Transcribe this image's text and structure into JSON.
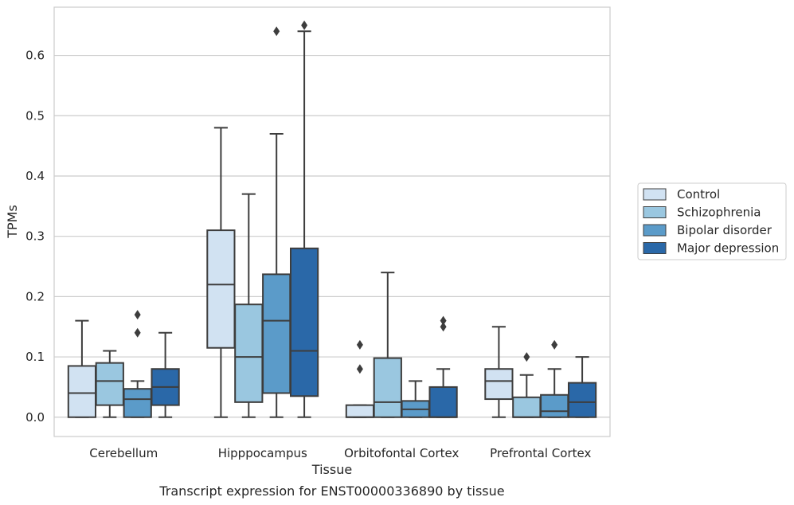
{
  "chart_data": {
    "type": "box",
    "caption": "Transcript expression for ENST00000336890 by tissue",
    "xlabel": "Tissue",
    "ylabel": "TPMs",
    "ylim": [
      -0.032,
      0.68
    ],
    "yticks": [
      0.0,
      0.1,
      0.2,
      0.3,
      0.4,
      0.5,
      0.6
    ],
    "ytick_labels": [
      "0.0",
      "0.1",
      "0.2",
      "0.3",
      "0.4",
      "0.5",
      "0.6"
    ],
    "grid": "horizontal",
    "legend_position": "right",
    "categories": [
      "Cerebellum",
      "Hipppocampus",
      "Orbitofontal Cortex",
      "Prefrontal Cortex"
    ],
    "series": [
      {
        "name": "Control",
        "color": "#d1e2f2",
        "boxes": [
          {
            "whislo": 0.0,
            "q1": 0.0,
            "med": 0.04,
            "q3": 0.085,
            "whishi": 0.16,
            "fliers": []
          },
          {
            "whislo": 0.0,
            "q1": 0.115,
            "med": 0.22,
            "q3": 0.31,
            "whishi": 0.48,
            "fliers": []
          },
          {
            "whislo": 0.0,
            "q1": 0.0,
            "med": 0.0,
            "q3": 0.02,
            "whishi": 0.02,
            "fliers": [
              0.08,
              0.12
            ]
          },
          {
            "whislo": 0.0,
            "q1": 0.03,
            "med": 0.06,
            "q3": 0.08,
            "whishi": 0.15,
            "fliers": []
          }
        ]
      },
      {
        "name": "Schizophrenia",
        "color": "#9ac7e0",
        "boxes": [
          {
            "whislo": 0.0,
            "q1": 0.02,
            "med": 0.06,
            "q3": 0.09,
            "whishi": 0.11,
            "fliers": []
          },
          {
            "whislo": 0.0,
            "q1": 0.025,
            "med": 0.1,
            "q3": 0.187,
            "whishi": 0.37,
            "fliers": []
          },
          {
            "whislo": 0.0,
            "q1": 0.0,
            "med": 0.025,
            "q3": 0.098,
            "whishi": 0.24,
            "fliers": []
          },
          {
            "whislo": 0.0,
            "q1": 0.0,
            "med": 0.0,
            "q3": 0.033,
            "whishi": 0.07,
            "fliers": [
              0.1
            ]
          }
        ]
      },
      {
        "name": "Bipolar disorder",
        "color": "#5b9bc9",
        "boxes": [
          {
            "whislo": 0.0,
            "q1": 0.0,
            "med": 0.03,
            "q3": 0.047,
            "whishi": 0.06,
            "fliers": [
              0.14,
              0.17
            ]
          },
          {
            "whislo": 0.0,
            "q1": 0.04,
            "med": 0.16,
            "q3": 0.237,
            "whishi": 0.47,
            "fliers": [
              0.64
            ]
          },
          {
            "whislo": 0.0,
            "q1": 0.0,
            "med": 0.013,
            "q3": 0.027,
            "whishi": 0.06,
            "fliers": []
          },
          {
            "whislo": 0.0,
            "q1": 0.0,
            "med": 0.01,
            "q3": 0.037,
            "whishi": 0.08,
            "fliers": [
              0.12
            ]
          }
        ]
      },
      {
        "name": "Major depression",
        "color": "#2a68a8",
        "boxes": [
          {
            "whislo": 0.0,
            "q1": 0.02,
            "med": 0.05,
            "q3": 0.08,
            "whishi": 0.14,
            "fliers": []
          },
          {
            "whislo": 0.0,
            "q1": 0.035,
            "med": 0.11,
            "q3": 0.28,
            "whishi": 0.64,
            "fliers": [
              0.65
            ]
          },
          {
            "whislo": 0.0,
            "q1": 0.0,
            "med": 0.0,
            "q3": 0.05,
            "whishi": 0.08,
            "fliers": [
              0.15,
              0.16
            ]
          },
          {
            "whislo": 0.0,
            "q1": 0.0,
            "med": 0.025,
            "q3": 0.057,
            "whishi": 0.1,
            "fliers": []
          }
        ]
      }
    ]
  }
}
